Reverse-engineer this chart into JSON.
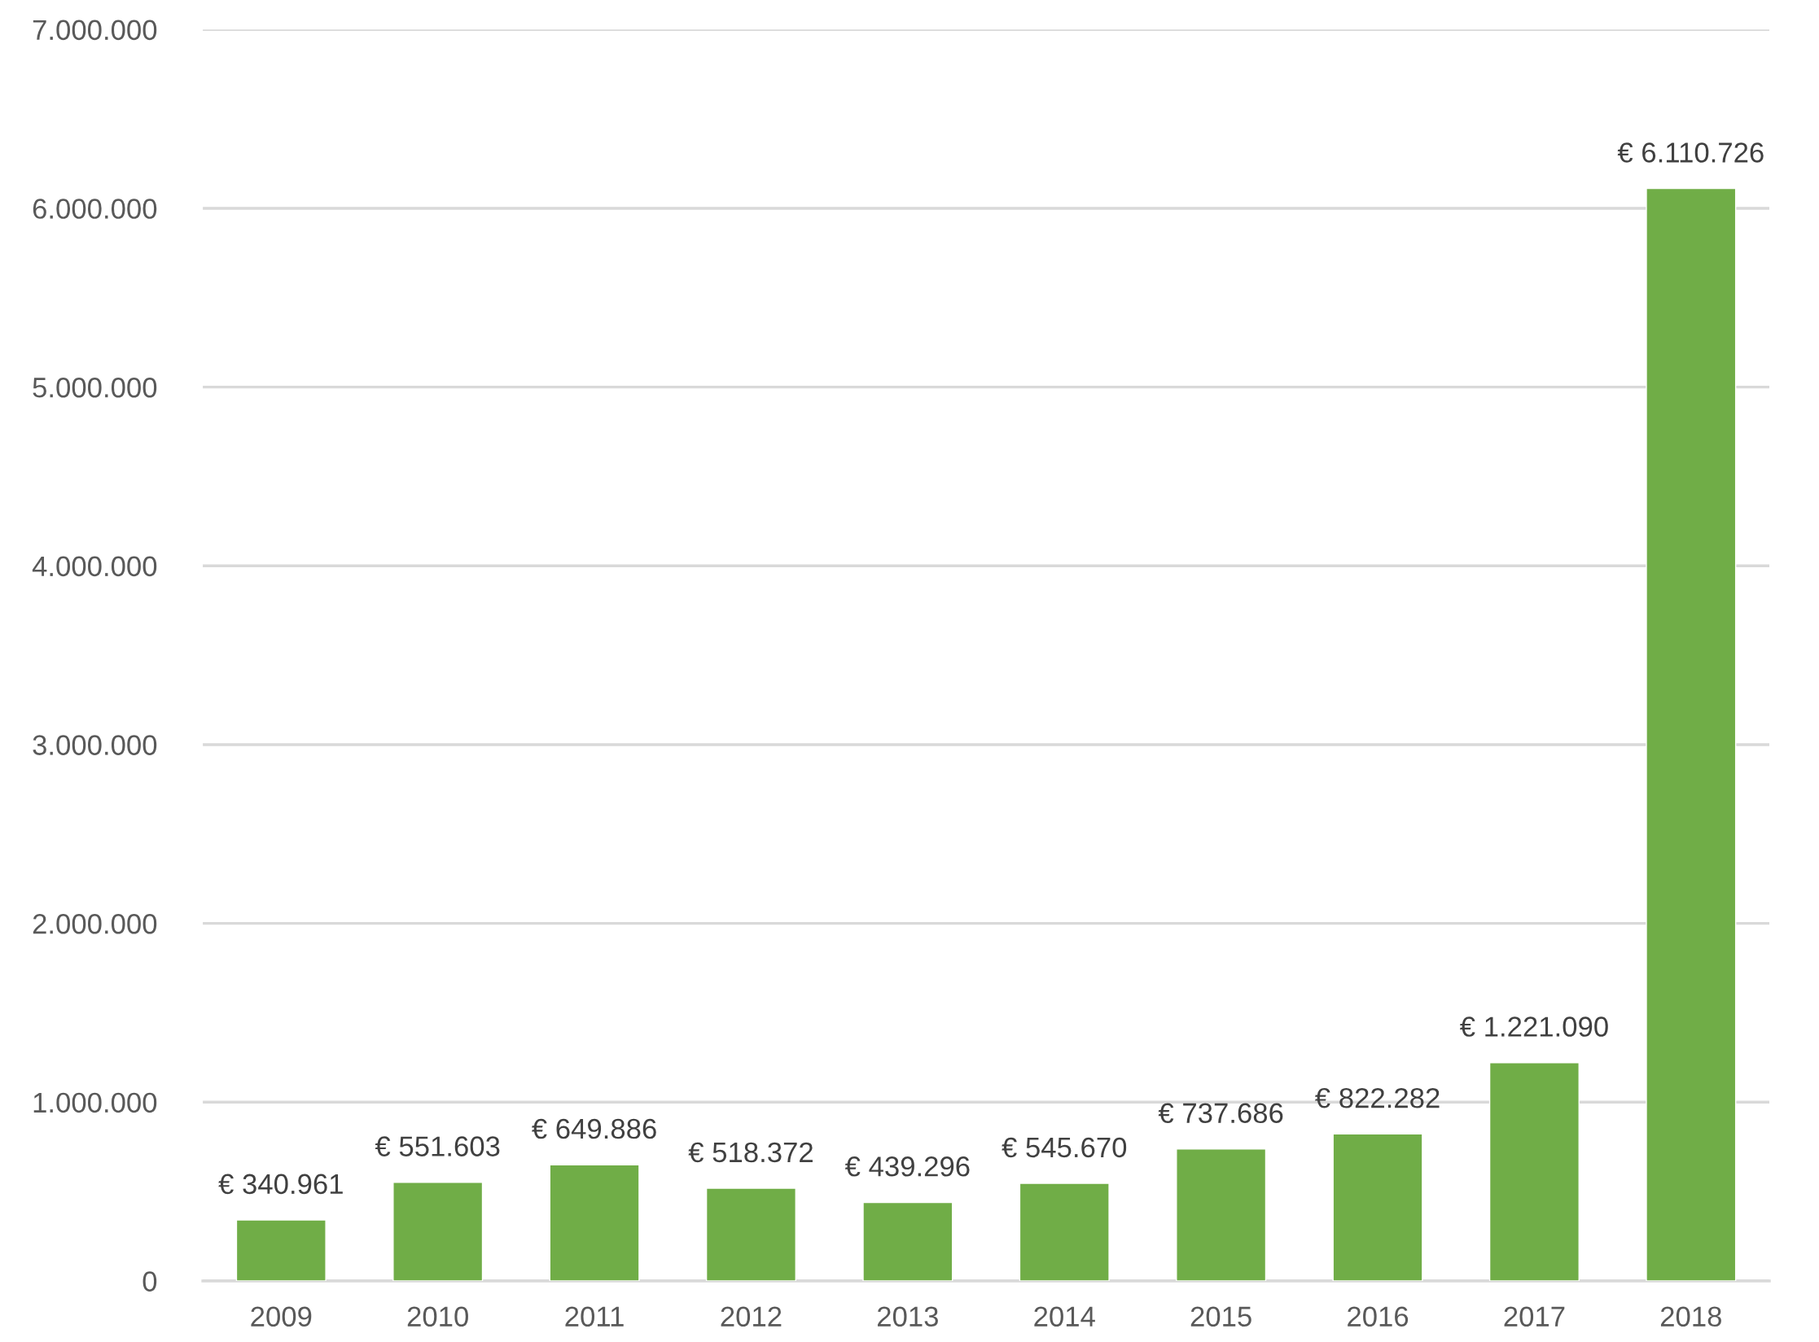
{
  "chart_data": {
    "type": "bar",
    "categories": [
      "2009",
      "2010",
      "2011",
      "2012",
      "2013",
      "2014",
      "2015",
      "2016",
      "2017",
      "2018"
    ],
    "values": [
      340961,
      551603,
      649886,
      518372,
      439296,
      545670,
      737686,
      822282,
      1221090,
      6110726
    ],
    "color": "#70ad47",
    "value_labels": [
      "€ 340.961",
      "€ 551.603",
      "€ 649.886",
      "€ 518.372",
      "€ 439.296",
      "€ 545.670",
      "€ 737.686",
      "€ 822.282",
      "€ 1.221.090",
      "€ 6.110.726"
    ],
    "ylim": [
      0,
      7000000
    ],
    "yticks": [
      0,
      {
        "value": 1000000,
        "label": "1.000.000"
      },
      {
        "value": 2000000,
        "label": "2.000.000"
      },
      {
        "value": 3000000,
        "label": "3.000.000"
      },
      {
        "value": 4000000,
        "label": "4.000.000"
      },
      {
        "value": 5000000,
        "label": "5.000.000"
      },
      {
        "value": 6000000,
        "label": "6.000.000"
      },
      {
        "value": 7000000,
        "label": "7.000.000"
      }
    ],
    "grid": "y"
  }
}
